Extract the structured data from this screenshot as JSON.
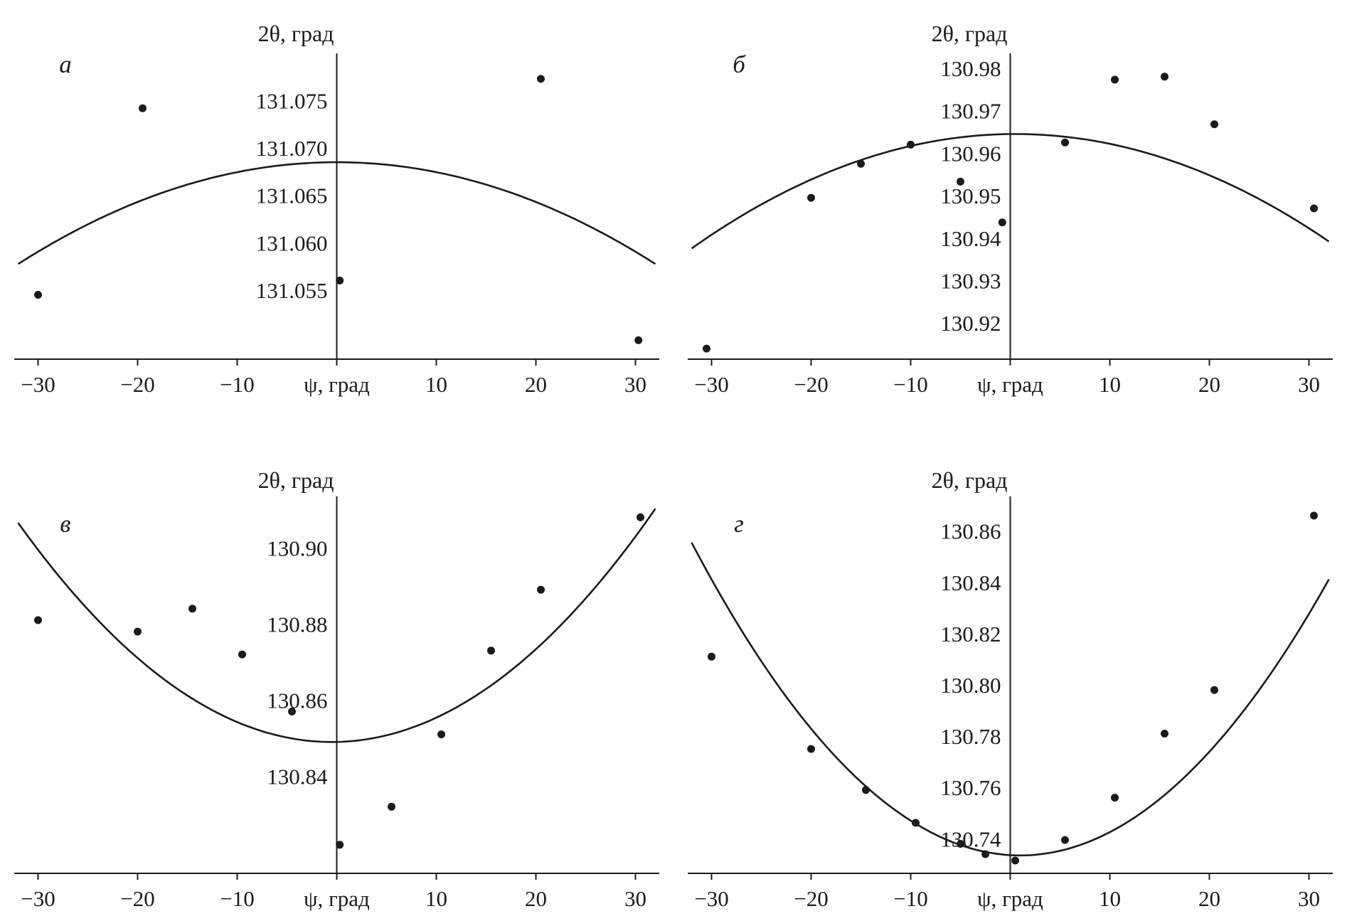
{
  "figure": {
    "kind": "xrd-sin2psi-plots",
    "panel_count": 4,
    "ink_color": "#1b1b1b",
    "background": "#ffffff"
  },
  "chart_data": [
    {
      "id": "a",
      "type": "scatter",
      "letter": "а",
      "title": "2θ, град",
      "xlabel": "ψ, град",
      "x_ticks": [
        -30,
        -20,
        -10,
        10,
        20,
        30
      ],
      "xlim": [
        -32,
        32
      ],
      "ylim": [
        131.0477,
        131.08
      ],
      "y_ticks": [
        131.055,
        131.06,
        131.065,
        131.07,
        131.075
      ],
      "y_decimals": 3,
      "legend": "none",
      "grid": false,
      "points": [
        [
          -30.0,
          131.0545
        ],
        [
          -19.5,
          131.0742
        ],
        [
          0.3,
          131.056
        ],
        [
          20.5,
          131.0773
        ],
        [
          30.3,
          131.0497
        ]
      ],
      "fit": {
        "shape": "parabola",
        "x0": 0.0,
        "y0": 131.0685,
        "a": -1.05e-05
      }
    },
    {
      "id": "b",
      "type": "scatter",
      "letter": "б",
      "title": "2θ, град",
      "xlabel": "ψ, град",
      "x_ticks": [
        -30,
        -20,
        -10,
        10,
        20,
        30
      ],
      "xlim": [
        -32,
        32
      ],
      "ylim": [
        130.9115,
        130.9835
      ],
      "y_ticks": [
        130.92,
        130.93,
        130.94,
        130.95,
        130.96,
        130.97,
        130.98
      ],
      "y_decimals": 2,
      "legend": "none",
      "grid": false,
      "points": [
        [
          -30.5,
          130.914
        ],
        [
          -20.0,
          130.9495
        ],
        [
          -15.0,
          130.9575
        ],
        [
          -10.0,
          130.962
        ],
        [
          -5.0,
          130.9533
        ],
        [
          -0.8,
          130.9437
        ],
        [
          5.5,
          130.9625
        ],
        [
          10.5,
          130.9773
        ],
        [
          15.5,
          130.978
        ],
        [
          20.5,
          130.9668
        ],
        [
          30.5,
          130.947
        ]
      ],
      "fit": {
        "shape": "parabola",
        "x0": 0.5,
        "y0": 130.9645,
        "a": -2.55e-05
      }
    },
    {
      "id": "v",
      "type": "scatter",
      "letter": "в",
      "title": "2θ, град",
      "xlabel": "ψ, град",
      "x_ticks": [
        -30,
        -20,
        -10,
        10,
        20,
        30
      ],
      "xlim": [
        -32,
        32
      ],
      "ylim": [
        130.8145,
        130.9135
      ],
      "y_ticks": [
        130.84,
        130.86,
        130.88,
        130.9
      ],
      "y_decimals": 2,
      "legend": "none",
      "grid": false,
      "points": [
        [
          -30.0,
          130.881
        ],
        [
          -20.0,
          130.878
        ],
        [
          -14.5,
          130.884
        ],
        [
          -9.5,
          130.872
        ],
        [
          -4.5,
          130.857
        ],
        [
          0.3,
          130.822
        ],
        [
          5.5,
          130.832
        ],
        [
          10.5,
          130.851
        ],
        [
          15.5,
          130.873
        ],
        [
          20.5,
          130.889
        ],
        [
          30.5,
          130.908
        ]
      ],
      "fit": {
        "shape": "parabola",
        "x0": -0.5,
        "y0": 130.849,
        "a": 5.8e-05
      }
    },
    {
      "id": "g",
      "type": "scatter",
      "letter": "г",
      "title": "2θ, град",
      "xlabel": "ψ, град",
      "x_ticks": [
        -30,
        -20,
        -10,
        10,
        20,
        30
      ],
      "xlim": [
        -32,
        32
      ],
      "ylim": [
        130.7265,
        130.8735
      ],
      "y_ticks": [
        130.74,
        130.76,
        130.78,
        130.8,
        130.82,
        130.84,
        130.86
      ],
      "y_decimals": 2,
      "legend": "none",
      "grid": false,
      "points": [
        [
          -30.0,
          130.811
        ],
        [
          -20.0,
          130.775
        ],
        [
          -14.5,
          130.759
        ],
        [
          -9.5,
          130.7462
        ],
        [
          -5.0,
          130.738
        ],
        [
          -2.5,
          130.734
        ],
        [
          0.5,
          130.7315
        ],
        [
          5.5,
          130.7395
        ],
        [
          10.5,
          130.756
        ],
        [
          15.5,
          130.781
        ],
        [
          20.5,
          130.798
        ],
        [
          30.5,
          130.866
        ]
      ],
      "fit": {
        "shape": "parabola",
        "x0": 1.0,
        "y0": 130.7335,
        "a": 0.000112
      }
    }
  ]
}
